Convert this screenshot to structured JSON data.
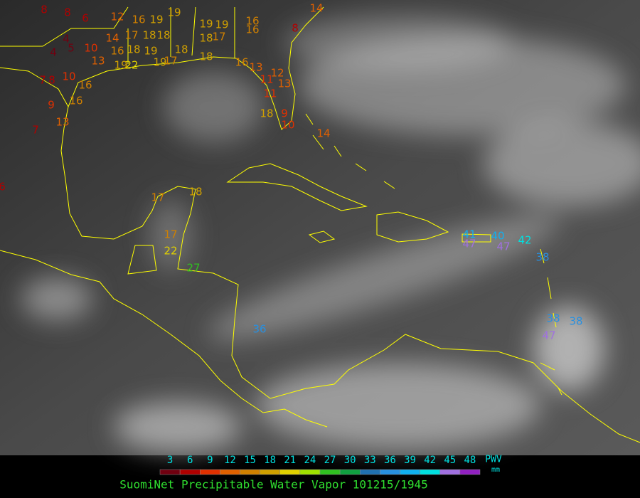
{
  "title": "SuomiNet Precipitable Water Vapor 101215/1945",
  "legend": {
    "label": "PWV",
    "unit": "mm",
    "ticks": [
      3,
      6,
      9,
      12,
      15,
      18,
      21,
      24,
      27,
      30,
      33,
      36,
      39,
      42,
      45,
      48
    ],
    "colors": [
      "#700010",
      "#b00000",
      "#e03000",
      "#e06000",
      "#d08000",
      "#d0a000",
      "#e0d000",
      "#a0e000",
      "#30c020",
      "#10a040",
      "#2070b0",
      "#2890e0",
      "#10b0f0",
      "#00e0e0",
      "#a070e0",
      "#9020c0"
    ]
  },
  "stations": [
    8,
    8,
    6,
    12,
    16,
    19,
    19,
    14,
    17,
    18,
    18,
    18,
    19,
    4,
    4,
    5,
    10,
    16,
    13,
    18,
    18,
    19,
    22,
    19,
    17,
    19,
    19,
    18,
    17,
    16,
    16,
    8,
    14,
    16,
    13,
    12,
    11,
    13,
    11,
    18,
    9,
    10,
    7,
    8,
    10,
    16,
    16,
    9,
    13,
    7,
    6,
    14,
    17,
    18,
    17,
    22,
    27,
    36,
    41,
    40,
    42,
    47,
    47,
    38,
    38,
    38,
    47
  ]
}
